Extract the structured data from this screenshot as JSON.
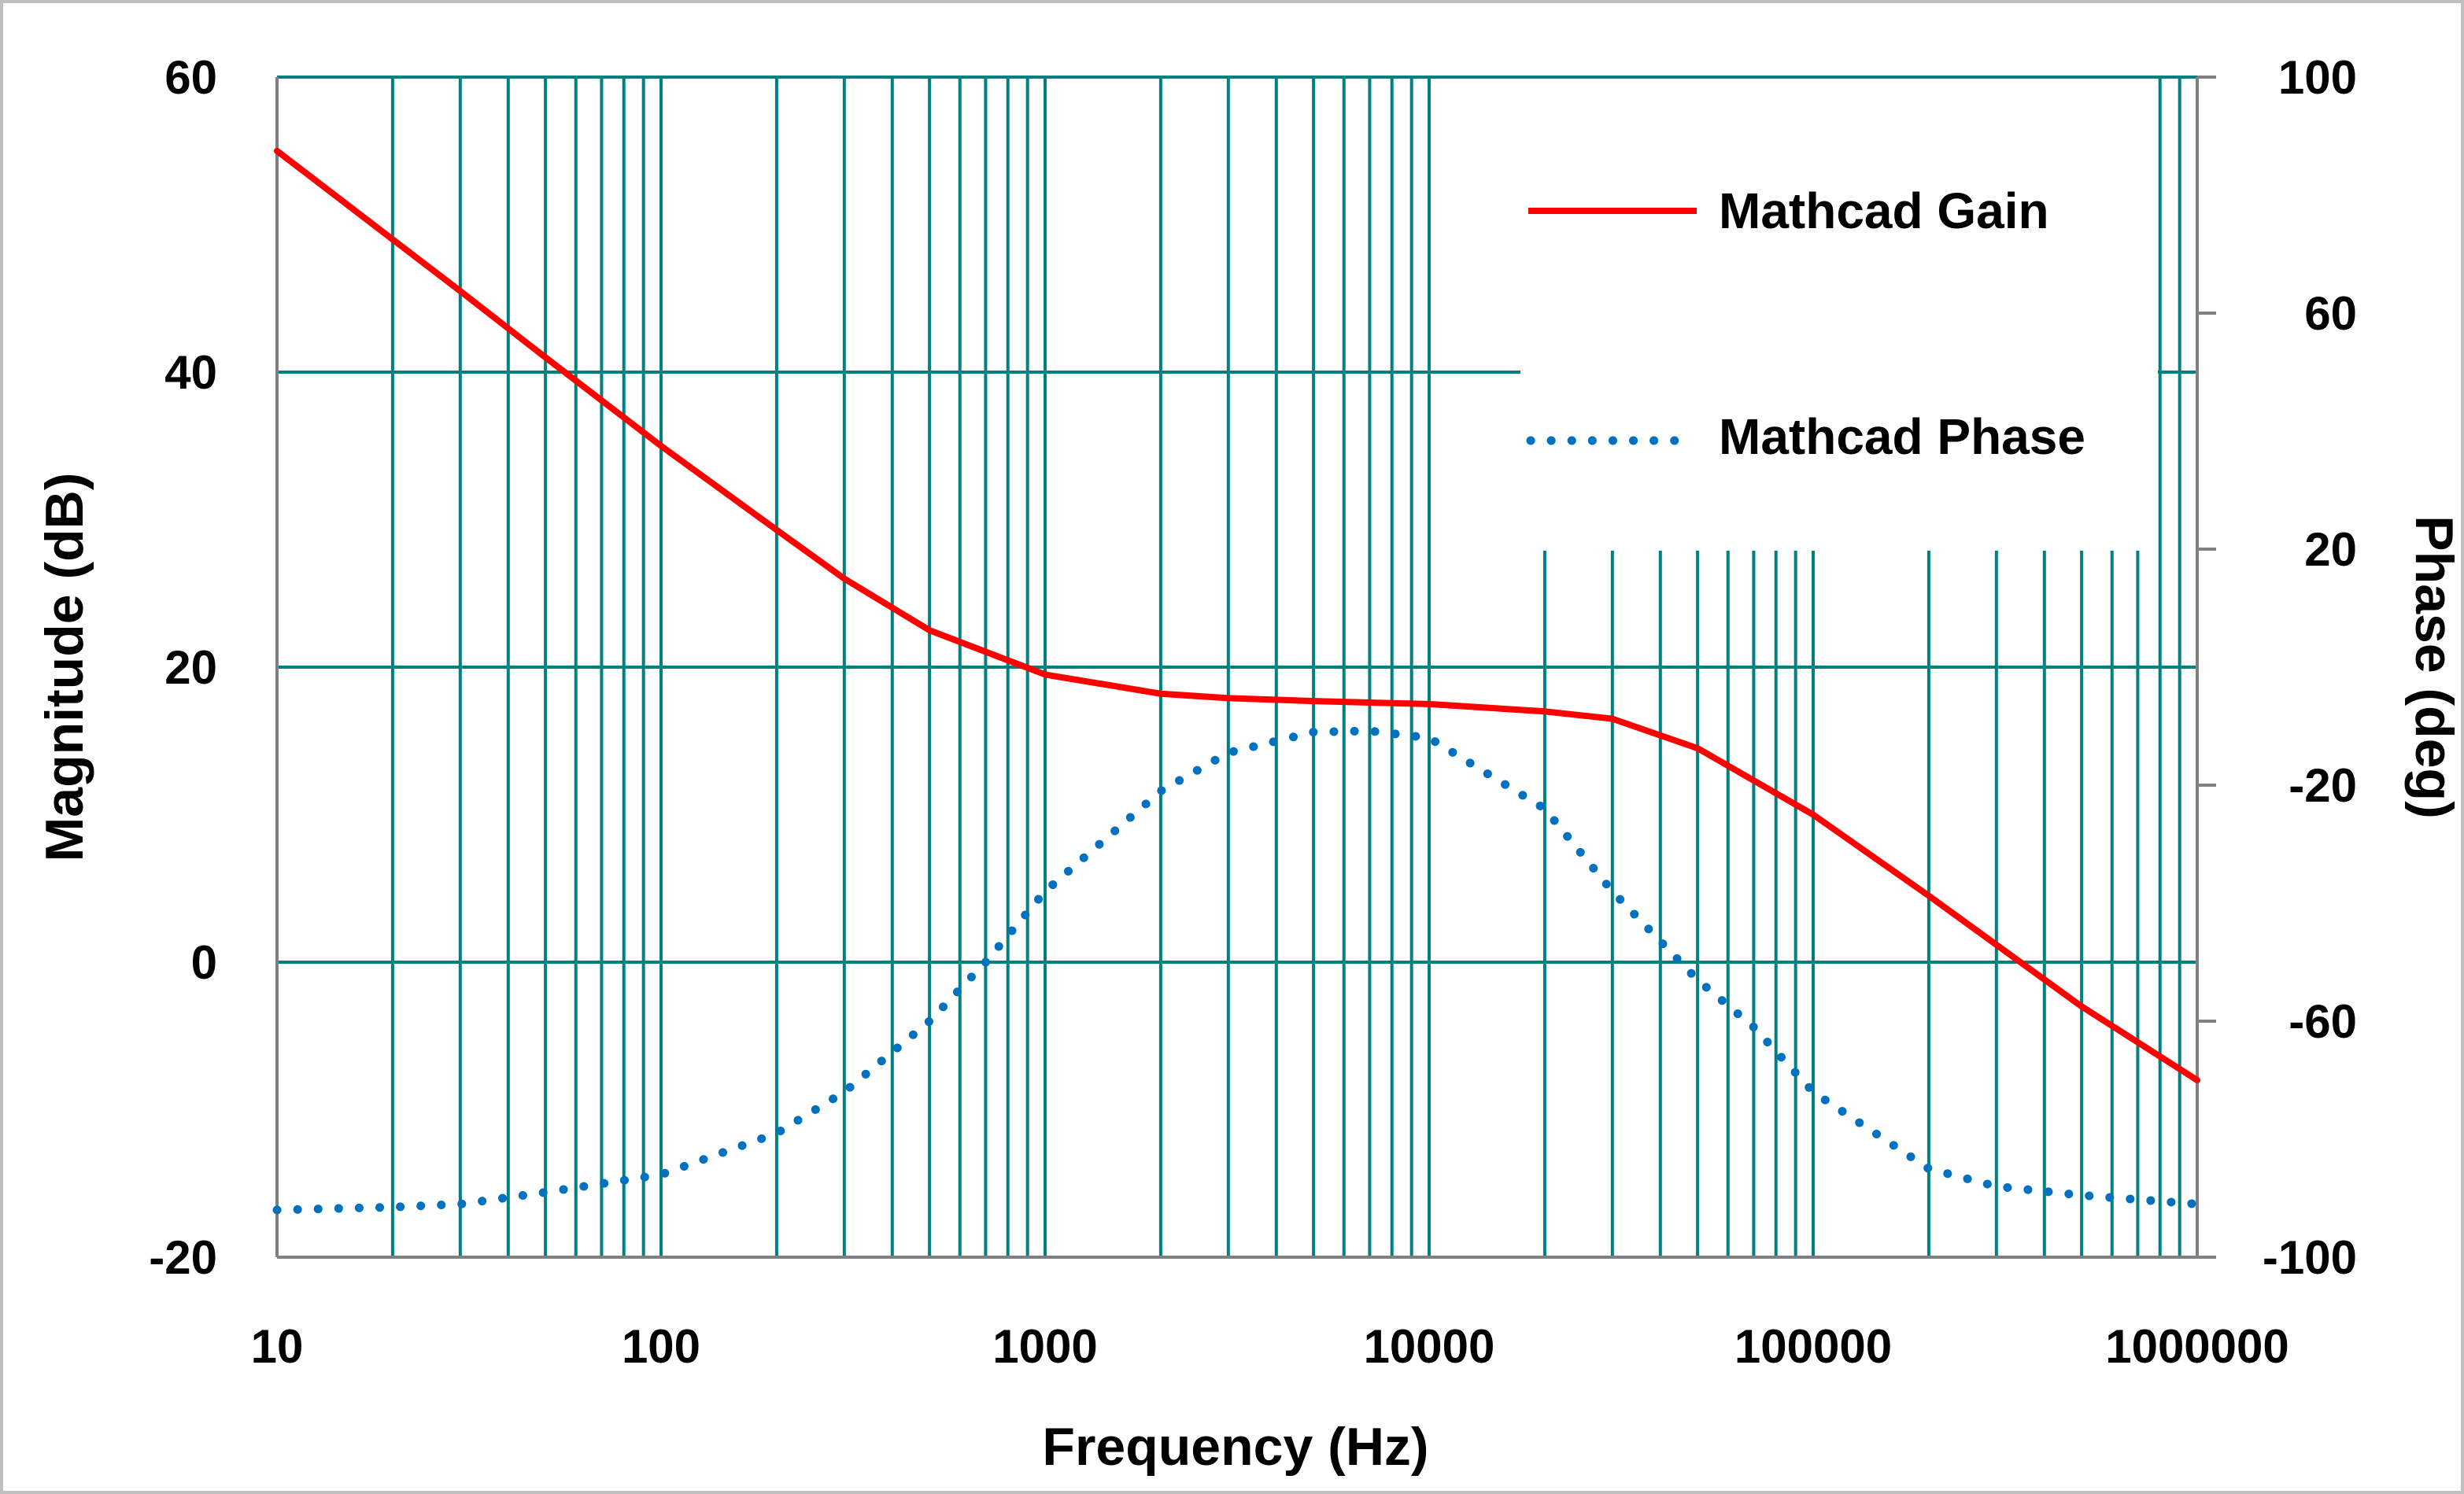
{
  "colors": {
    "grid": "#008080",
    "gain": "#ff0000",
    "phase": "#0070c0",
    "axis": "#808080",
    "text": "#000000"
  },
  "chart_data": {
    "type": "line",
    "title": "",
    "xlabel": "Frequency (Hz)",
    "ylabel": "Magnitude (dB)",
    "y2label": "Phase (deg)",
    "x_scale": "log",
    "xlim": [
      10,
      1000000
    ],
    "ylim": [
      -20,
      60
    ],
    "y2lim": [
      -100,
      100
    ],
    "grid": true,
    "legend_position": "top-right",
    "x_tick_labels": [
      "10",
      "100",
      "1000",
      "10000",
      "100000",
      "1000000"
    ],
    "y_tick_labels": [
      "-20",
      "0",
      "20",
      "40",
      "60"
    ],
    "y2_tick_labels": [
      "-100",
      "-60",
      "-20",
      "20",
      "60",
      "100"
    ],
    "series": [
      {
        "name": "Mathcad Gain",
        "axis": "left",
        "style": "solid",
        "x": [
          10,
          20,
          30,
          50,
          100,
          200,
          300,
          500,
          1000,
          2000,
          3000,
          5000,
          7000,
          10000,
          20000,
          30000,
          50000,
          100000,
          200000,
          500000,
          1000000
        ],
        "y": [
          55.0,
          49.0,
          45.5,
          41.0,
          35.0,
          29.3,
          26.0,
          22.5,
          19.5,
          18.2,
          17.9,
          17.7,
          17.6,
          17.5,
          17.0,
          16.5,
          14.5,
          10.0,
          4.5,
          -3.0,
          -8.0
        ]
      },
      {
        "name": "Mathcad Phase",
        "axis": "right",
        "style": "dotted",
        "x": [
          10,
          20,
          30,
          50,
          100,
          200,
          300,
          500,
          700,
          1000,
          2000,
          3000,
          5000,
          7000,
          10000,
          20000,
          30000,
          50000,
          70000,
          100000,
          200000,
          300000,
          500000,
          1000000
        ],
        "y": [
          -92,
          -91.5,
          -91,
          -89,
          -86,
          -79,
          -72,
          -60,
          -50,
          -38,
          -21,
          -14.5,
          -11,
          -10.8,
          -12,
          -24,
          -38,
          -53,
          -61,
          -72,
          -85,
          -88,
          -89.5,
          -91
        ]
      }
    ]
  }
}
